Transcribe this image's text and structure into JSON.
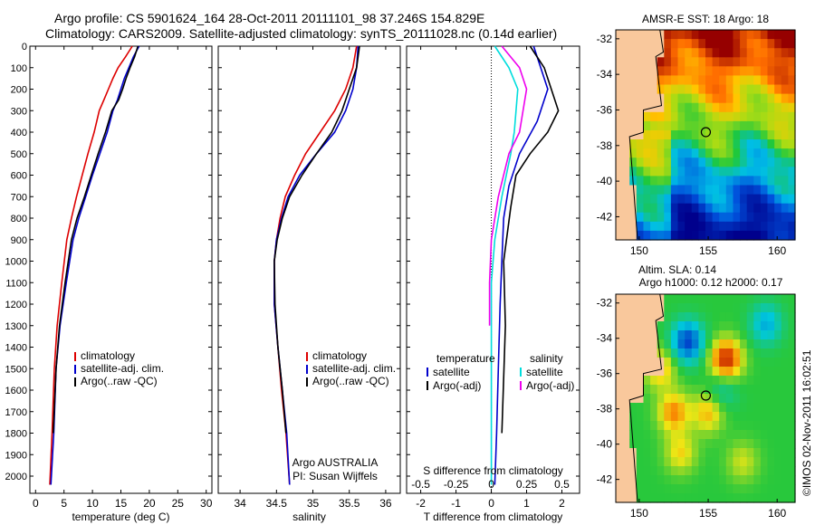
{
  "header": {
    "title_line1": "Argo profile: CS 5901624_164 28-Oct-2011 20111101_98 37.246S 154.829E",
    "title_line2": "Climatology: CARS2009. Satellite-adjusted climatology: synTS_20111028.nc (0.14d earlier)"
  },
  "stamp": "©IMOS 02-Nov-2011 16:02:51",
  "colors": {
    "climatology": "#dd0000",
    "satellite": "#0000cc",
    "argo": "#000000",
    "satellite_salinity": "#00dddd",
    "argo_salinity": "#ee00ee",
    "land": "#f9c89c"
  },
  "chart_data": [
    {
      "type": "line",
      "id": "temperature",
      "xlabel": "temperature (deg C)",
      "ylabel": "",
      "xlim": [
        -1,
        31
      ],
      "ylim": [
        2080,
        0
      ],
      "xticks": [
        0,
        5,
        10,
        15,
        20,
        25,
        30
      ],
      "yticks": [
        0,
        100,
        200,
        300,
        400,
        500,
        600,
        700,
        800,
        900,
        1000,
        1100,
        1200,
        1300,
        1400,
        1500,
        1600,
        1700,
        1800,
        1900,
        2000
      ],
      "legend": [
        "climatology",
        "satellite-adj. clim.",
        "Argo(..raw -QC)"
      ],
      "legend_position": "lower-center",
      "series": [
        {
          "name": "climatology",
          "color_key": "climatology",
          "x": [
            17.0,
            15.8,
            14.5,
            13.6,
            12.8,
            12.0,
            11.2,
            10.3,
            9.2,
            8.2,
            7.2,
            6.3,
            5.5,
            4.6,
            3.8,
            3.3,
            2.9,
            2.5
          ],
          "y": [
            0,
            50,
            100,
            150,
            200,
            250,
            300,
            400,
            500,
            600,
            700,
            800,
            900,
            1100,
            1300,
            1500,
            1800,
            2040
          ]
        },
        {
          "name": "satellite-adj. clim.",
          "color_key": "satellite",
          "x": [
            18.2,
            17.2,
            16.4,
            15.6,
            15.0,
            14.4,
            13.6,
            12.6,
            11.3,
            10.0,
            8.8,
            7.6,
            6.6,
            5.4,
            4.3,
            3.6,
            3.2,
            2.7
          ],
          "y": [
            0,
            50,
            100,
            150,
            200,
            250,
            300,
            400,
            500,
            600,
            700,
            800,
            900,
            1100,
            1300,
            1500,
            1800,
            2040
          ]
        },
        {
          "name": "Argo(..raw -QC)",
          "color_key": "argo",
          "x": [
            18.0,
            17.4,
            16.6,
            15.9,
            15.3,
            14.6,
            13.4,
            12.3,
            11.0,
            9.8,
            8.6,
            7.3,
            6.3,
            5.2,
            4.2,
            3.6,
            3.1
          ],
          "y": [
            0,
            50,
            100,
            150,
            200,
            250,
            300,
            400,
            500,
            600,
            700,
            800,
            900,
            1100,
            1300,
            1500,
            1800
          ]
        }
      ]
    },
    {
      "type": "line",
      "id": "salinity",
      "xlabel": "salinity",
      "xlim": [
        33.7,
        36.2
      ],
      "ylim": [
        2080,
        0
      ],
      "xticks": [
        34,
        34.5,
        35,
        35.5,
        36
      ],
      "legend": [
        "climatology",
        "satellite-adj. clim.",
        "Argo(..raw -QC)"
      ],
      "legend_position": "lower-center",
      "annotation": [
        "Argo AUSTRALIA",
        "PI: Susan Wijffels"
      ],
      "series": [
        {
          "name": "climatology",
          "color_key": "climatology",
          "x": [
            35.6,
            35.55,
            35.45,
            35.3,
            35.1,
            34.9,
            34.75,
            34.62,
            34.55,
            34.5,
            34.47,
            34.47,
            34.52,
            34.57,
            34.63,
            34.68
          ],
          "y": [
            0,
            100,
            200,
            300,
            400,
            500,
            600,
            700,
            800,
            900,
            1000,
            1200,
            1400,
            1600,
            1800,
            2040
          ]
        },
        {
          "name": "satellite-adj. clim.",
          "color_key": "satellite",
          "x": [
            35.62,
            35.6,
            35.55,
            35.45,
            35.3,
            35.05,
            34.82,
            34.66,
            34.57,
            34.5,
            34.47,
            34.47,
            34.52,
            34.58,
            34.64,
            34.68
          ],
          "y": [
            0,
            100,
            200,
            300,
            400,
            500,
            600,
            700,
            800,
            900,
            1000,
            1200,
            1400,
            1600,
            1800,
            2040
          ]
        },
        {
          "name": "Argo(..raw -QC)",
          "color_key": "argo",
          "x": [
            35.64,
            35.6,
            35.5,
            35.4,
            35.26,
            35.05,
            34.85,
            34.68,
            34.58,
            34.51,
            34.47,
            34.48,
            34.52,
            34.58,
            34.63
          ],
          "y": [
            0,
            100,
            200,
            300,
            400,
            500,
            600,
            700,
            800,
            900,
            1000,
            1200,
            1400,
            1600,
            1800
          ]
        }
      ]
    },
    {
      "type": "line",
      "id": "difference",
      "xlabel": "T difference from climatology",
      "xlabel_top": "S difference from climatology",
      "xlim": [
        -2.4,
        2.5
      ],
      "ylim": [
        2080,
        0
      ],
      "xticks": [
        -2,
        -1,
        0,
        1,
        2
      ],
      "xticks_top_labels": [
        "-0.5",
        "-0.25",
        "0",
        "0.25",
        "0.5"
      ],
      "zero_line": "dotted",
      "legend_temperature": [
        "temperature",
        "satellite",
        "Argo(-adj)"
      ],
      "legend_salinity": [
        "salinity",
        "satellite",
        "Argo(-adj)"
      ],
      "series": [
        {
          "name": "satellite",
          "group": "temperature",
          "color_key": "satellite",
          "x": [
            1.2,
            1.4,
            1.6,
            1.3,
            0.8,
            0.5,
            0.35,
            0.3,
            0.25,
            0.2,
            0.15,
            0.1
          ],
          "y": [
            0,
            100,
            200,
            350,
            500,
            650,
            800,
            1000,
            1200,
            1500,
            1800,
            2040
          ]
        },
        {
          "name": "Argo(-adj)",
          "group": "temperature",
          "color_key": "argo",
          "x": [
            1.1,
            1.5,
            1.7,
            1.9,
            1.6,
            1.1,
            0.7,
            0.55,
            0.35,
            0.4,
            0.3
          ],
          "y": [
            0,
            100,
            200,
            300,
            400,
            500,
            600,
            750,
            1000,
            1300,
            1800
          ]
        },
        {
          "name": "satellite",
          "group": "salinity",
          "color_key": "satellite_salinity",
          "x": [
            0.1,
            0.5,
            0.75,
            0.65,
            0.55,
            0.3,
            0.1,
            0.0,
            0.0,
            0.0
          ],
          "y": [
            0,
            100,
            200,
            400,
            500,
            700,
            900,
            1100,
            1500,
            2040
          ]
        },
        {
          "name": "Argo(-adj)",
          "group": "salinity",
          "color_key": "argo_salinity",
          "x": [
            0.3,
            0.8,
            1.0,
            0.8,
            0.5,
            0.2,
            0.0,
            -0.05,
            -0.05
          ],
          "y": [
            0,
            100,
            200,
            400,
            500,
            700,
            900,
            1100,
            1300
          ]
        }
      ]
    },
    {
      "type": "heatmap",
      "id": "sst-map",
      "title": "AMSR-E SST: 18 Argo: 18",
      "xticks": [
        150,
        155,
        160
      ],
      "yticks": [
        -32,
        -34,
        -36,
        -38,
        -40,
        -42
      ],
      "xlim": [
        148.3,
        161.3
      ],
      "ylim": [
        -43.3,
        -31.5
      ],
      "argo_position": {
        "lon": 154.829,
        "lat": -37.246
      }
    },
    {
      "type": "heatmap",
      "id": "sla-map",
      "title_line1": "Altim. SLA: 0.14",
      "title_line2": "Argo h1000: 0.12 h2000: 0.17",
      "xticks": [
        150,
        155,
        160
      ],
      "yticks": [
        -32,
        -34,
        -36,
        -38,
        -40,
        -42
      ],
      "xlim": [
        148.3,
        161.3
      ],
      "ylim": [
        -43.3,
        -31.5
      ],
      "argo_position": {
        "lon": 154.829,
        "lat": -37.246
      }
    }
  ]
}
